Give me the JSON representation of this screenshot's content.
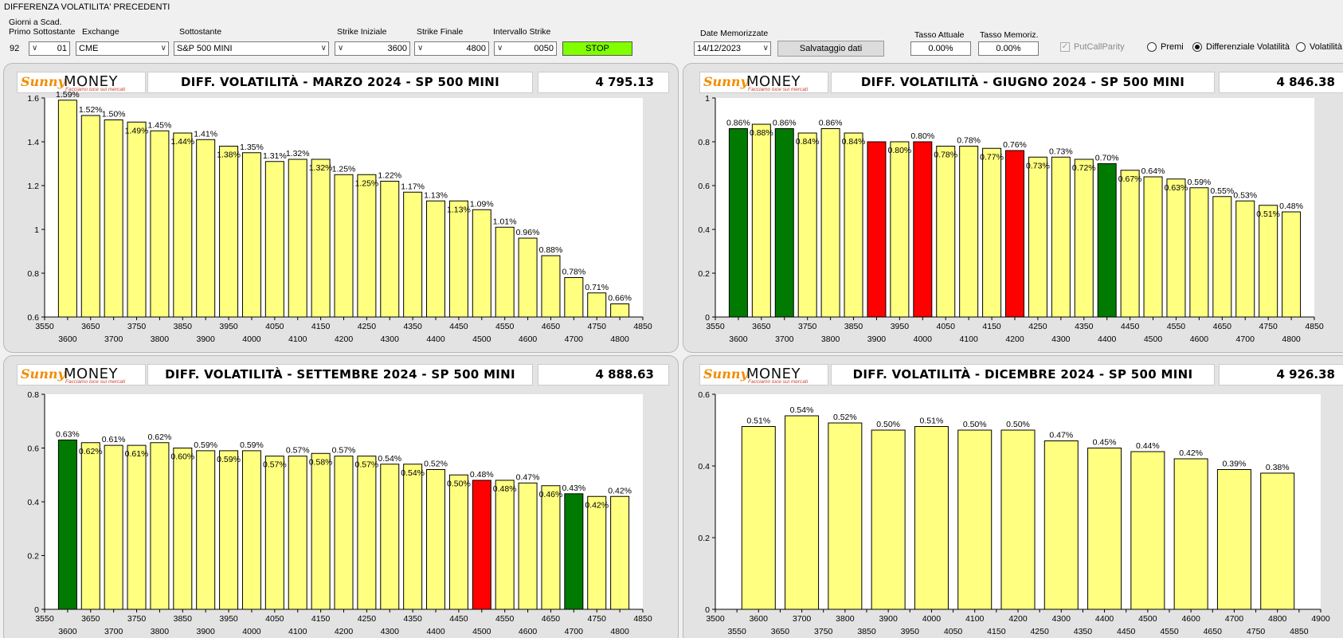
{
  "header": {
    "title": "DIFFERENZA VOLATILITA' PRECEDENTI",
    "giorni_label_1": "Giorni a Scad.",
    "giorni_label_2": "Primo Sottostante",
    "giorni_value": "92",
    "primo_value": "01",
    "exchange_label": "Exchange",
    "exchange_value": "CME",
    "sottostante_label": "Sottostante",
    "sottostante_value": "S&P 500 MINI",
    "strike_iniziale_label": "Strike Iniziale",
    "strike_iniziale_value": "3600",
    "strike_finale_label": "Strike Finale",
    "strike_finale_value": "4800",
    "intervallo_label": "Intervallo Strike",
    "intervallo_value": "0050",
    "stop_label": "STOP",
    "date_label": "Date Memorizzate",
    "date_value": "14/12/2023",
    "salva_label": "Salvataggio dati",
    "tasso_attuale_label": "Tasso Attuale",
    "tasso_attuale_value": "0.00%",
    "tasso_memoriz_label": "Tasso Memoriz.",
    "tasso_memoriz_value": "0.00%",
    "putcall_label": "PutCallParity",
    "radio_premi": "Premi",
    "radio_diff": "Differenziale Volatilità",
    "radio_vol": "Volatilità",
    "selected_radio": "Differenziale Volatilità"
  },
  "logo": {
    "sunny": "Sunny",
    "money": "MONEY",
    "tagline": "Facciamo luce sui mercati"
  },
  "colors": {
    "yellow": "#ffff80",
    "green": "#007a00",
    "red": "#ff0000",
    "stop": "#80ff00"
  },
  "chart_data": [
    {
      "type": "bar",
      "title": "DIFF. VOLATILITÀ - MARZO 2024 - SP 500 MINI",
      "price": "4 795.13",
      "ylim": [
        0.6,
        1.6
      ],
      "yticks": [
        "0.6",
        "0.8",
        "1",
        "1.2",
        "1.4",
        "1.6"
      ],
      "xlim": [
        3550,
        4850
      ],
      "xticks_top": [
        "3550",
        "3650",
        "3750",
        "3850",
        "3950",
        "4050",
        "4150",
        "4250",
        "4350",
        "4450",
        "4550",
        "4650",
        "4750",
        "4850"
      ],
      "xticks_bottom": [
        "3600",
        "3700",
        "3800",
        "3900",
        "4000",
        "4100",
        "4200",
        "4300",
        "4400",
        "4500",
        "4600",
        "4700",
        "4800"
      ],
      "x": [
        3600,
        3650,
        3700,
        3750,
        3800,
        3850,
        3900,
        3950,
        4000,
        4050,
        4100,
        4150,
        4200,
        4250,
        4300,
        4350,
        4400,
        4450,
        4500,
        4550,
        4600,
        4650,
        4700,
        4750,
        4800
      ],
      "values": [
        1.59,
        1.52,
        1.5,
        1.49,
        1.45,
        1.44,
        1.41,
        1.38,
        1.35,
        1.31,
        1.32,
        1.32,
        1.25,
        1.25,
        1.22,
        1.17,
        1.13,
        1.13,
        1.09,
        1.01,
        0.96,
        0.88,
        0.78,
        0.71,
        0.66
      ],
      "labels": [
        "1.59%",
        "1.52%",
        "1.50%",
        "1.49%",
        "1.45%",
        "1.44%",
        "1.41%",
        "1.38%",
        "1.35%",
        "1.31%",
        "1.32%",
        "1.32%",
        "1.25%",
        "1.25%",
        "1.22%",
        "1.17%",
        "1.13%",
        "1.13%",
        "1.09%",
        "1.01%",
        "0.96%",
        "0.88%",
        "0.78%",
        "0.71%",
        "0.66%"
      ],
      "colors": [
        "y",
        "y",
        "y",
        "y",
        "y",
        "y",
        "y",
        "y",
        "y",
        "y",
        "y",
        "y",
        "y",
        "y",
        "y",
        "y",
        "y",
        "y",
        "y",
        "y",
        "y",
        "y",
        "y",
        "y",
        "y"
      ]
    },
    {
      "type": "bar",
      "title": "DIFF. VOLATILITÀ - GIUGNO 2024 - SP 500 MINI",
      "price": "4 846.38",
      "ylim": [
        0,
        1
      ],
      "yticks": [
        "0",
        "0.2",
        "0.4",
        "0.6",
        "0.8",
        "1"
      ],
      "xlim": [
        3550,
        4850
      ],
      "xticks_top": [
        "3550",
        "3650",
        "3750",
        "3850",
        "3950",
        "4050",
        "4150",
        "4250",
        "4350",
        "4450",
        "4550",
        "4650",
        "4750",
        "4850"
      ],
      "xticks_bottom": [
        "3600",
        "3700",
        "3800",
        "3900",
        "4000",
        "4100",
        "4200",
        "4300",
        "4400",
        "4500",
        "4600",
        "4700",
        "4800"
      ],
      "x": [
        3600,
        3650,
        3700,
        3750,
        3800,
        3850,
        3900,
        3950,
        4000,
        4050,
        4100,
        4150,
        4200,
        4250,
        4300,
        4350,
        4400,
        4450,
        4500,
        4550,
        4600,
        4650,
        4700,
        4750,
        4800
      ],
      "values": [
        0.86,
        0.88,
        0.86,
        0.84,
        0.86,
        0.84,
        0.8,
        0.8,
        0.8,
        0.78,
        0.78,
        0.77,
        0.76,
        0.73,
        0.73,
        0.72,
        0.7,
        0.67,
        0.64,
        0.63,
        0.59,
        0.55,
        0.53,
        0.51,
        0.48
      ],
      "labels": [
        "0.86%",
        "0.88%",
        "0.86%",
        "0.84%",
        "0.86%",
        "0.84%",
        "",
        "0.80%",
        "0.80%",
        "0.78%",
        "0.78%",
        "0.77%",
        "0.76%",
        "0.73%",
        "0.73%",
        "0.72%",
        "0.70%",
        "0.67%",
        "0.64%",
        "0.63%",
        "0.59%",
        "0.55%",
        "0.53%",
        "0.51%",
        "0.48%"
      ],
      "colors": [
        "g",
        "y",
        "g",
        "y",
        "y",
        "y",
        "r",
        "y",
        "r",
        "y",
        "y",
        "y",
        "r",
        "y",
        "y",
        "y",
        "g",
        "y",
        "y",
        "y",
        "y",
        "y",
        "y",
        "y",
        "y"
      ]
    },
    {
      "type": "bar",
      "title": "DIFF. VOLATILITÀ - SETTEMBRE 2024 - SP 500 MINI",
      "price": "4 888.63",
      "ylim": [
        0,
        0.8
      ],
      "yticks": [
        "0",
        "0.2",
        "0.4",
        "0.6",
        "0.8"
      ],
      "xlim": [
        3550,
        4850
      ],
      "xticks_top": [
        "3550",
        "3650",
        "3750",
        "3850",
        "3950",
        "4050",
        "4150",
        "4250",
        "4350",
        "4450",
        "4550",
        "4650",
        "4750",
        "4850"
      ],
      "xticks_bottom": [
        "3600",
        "3700",
        "3800",
        "3900",
        "4000",
        "4100",
        "4200",
        "4300",
        "4400",
        "4500",
        "4600",
        "4700",
        "4800"
      ],
      "x": [
        3600,
        3650,
        3700,
        3750,
        3800,
        3850,
        3900,
        3950,
        4000,
        4050,
        4100,
        4150,
        4200,
        4250,
        4300,
        4350,
        4400,
        4450,
        4500,
        4550,
        4600,
        4650,
        4700,
        4750,
        4800
      ],
      "values": [
        0.63,
        0.62,
        0.61,
        0.61,
        0.62,
        0.6,
        0.59,
        0.59,
        0.59,
        0.57,
        0.57,
        0.58,
        0.57,
        0.57,
        0.54,
        0.54,
        0.52,
        0.5,
        0.48,
        0.48,
        0.47,
        0.46,
        0.43,
        0.42,
        0.42
      ],
      "labels": [
        "0.63%",
        "0.62%",
        "0.61%",
        "0.61%",
        "0.62%",
        "0.60%",
        "0.59%",
        "0.59%",
        "0.59%",
        "0.57%",
        "0.57%",
        "0.58%",
        "0.57%",
        "0.57%",
        "0.54%",
        "0.54%",
        "0.52%",
        "0.50%",
        "0.48%",
        "0.48%",
        "0.47%",
        "0.46%",
        "0.43%",
        "0.42%",
        "0.42%"
      ],
      "colors": [
        "g",
        "y",
        "y",
        "y",
        "y",
        "y",
        "y",
        "y",
        "y",
        "y",
        "y",
        "y",
        "y",
        "y",
        "y",
        "y",
        "y",
        "y",
        "r",
        "y",
        "y",
        "y",
        "g",
        "y",
        "y"
      ]
    },
    {
      "type": "bar",
      "title": "DIFF. VOLATILITÀ - DICEMBRE 2024 - SP 500 MINI",
      "price": "4 926.38",
      "ylim": [
        0,
        0.6
      ],
      "yticks": [
        "0",
        "0.2",
        "0.4",
        "0.6"
      ],
      "xlim": [
        3500,
        4900
      ],
      "xticks_top": [
        "3500",
        "3600",
        "3700",
        "3800",
        "3900",
        "4000",
        "4100",
        "4200",
        "4300",
        "4400",
        "4500",
        "4600",
        "4700",
        "4800",
        "4900"
      ],
      "xticks_bottom": [
        "3550",
        "3650",
        "3750",
        "3850",
        "3950",
        "4050",
        "4150",
        "4250",
        "4350",
        "4450",
        "4550",
        "4650",
        "4750",
        "4850"
      ],
      "x": [
        3600,
        3700,
        3800,
        3900,
        4000,
        4100,
        4200,
        4300,
        4400,
        4500,
        4600,
        4700,
        4800
      ],
      "values": [
        0.51,
        0.54,
        0.52,
        0.5,
        0.51,
        0.5,
        0.5,
        0.47,
        0.45,
        0.44,
        0.42,
        0.39,
        0.38
      ],
      "labels": [
        "0.51%",
        "0.54%",
        "0.52%",
        "0.50%",
        "0.51%",
        "0.50%",
        "0.50%",
        "0.47%",
        "0.45%",
        "0.44%",
        "0.42%",
        "0.39%",
        "0.38%"
      ],
      "colors": [
        "y",
        "y",
        "y",
        "y",
        "y",
        "y",
        "y",
        "y",
        "y",
        "y",
        "y",
        "y",
        "y"
      ]
    }
  ]
}
